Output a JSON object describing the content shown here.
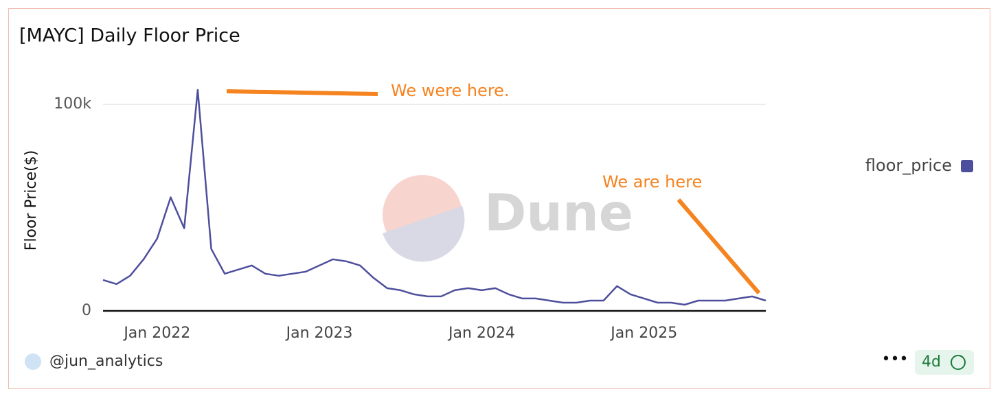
{
  "chart_data": {
    "type": "line",
    "title": "[MAYC] Daily Floor Price",
    "y_label": "Floor Price($)",
    "x": [
      "2021-09",
      "2021-10",
      "2021-11",
      "2021-12",
      "2022-01",
      "2022-02",
      "2022-03",
      "2022-04",
      "2022-05",
      "2022-06",
      "2022-07",
      "2022-08",
      "2022-09",
      "2022-10",
      "2022-11",
      "2022-12",
      "2023-01",
      "2023-02",
      "2023-03",
      "2023-04",
      "2023-05",
      "2023-06",
      "2023-07",
      "2023-08",
      "2023-09",
      "2023-10",
      "2023-11",
      "2023-12",
      "2024-01",
      "2024-02",
      "2024-03",
      "2024-04",
      "2024-05",
      "2024-06",
      "2024-07",
      "2024-08",
      "2024-09",
      "2024-10",
      "2024-11",
      "2024-12",
      "2025-01",
      "2025-02",
      "2025-03",
      "2025-04",
      "2025-05",
      "2025-06",
      "2025-07",
      "2025-08",
      "2025-09",
      "2025-10"
    ],
    "series": [
      {
        "name": "floor_price",
        "color": "#4e4f9c",
        "values": [
          15000,
          13000,
          17000,
          25000,
          35000,
          55000,
          40000,
          107000,
          30000,
          18000,
          20000,
          22000,
          18000,
          17000,
          18000,
          19000,
          22000,
          25000,
          24000,
          22000,
          16000,
          11000,
          10000,
          8000,
          7000,
          7000,
          10000,
          11000,
          10000,
          11000,
          8000,
          6000,
          6000,
          5000,
          4000,
          4000,
          5000,
          5000,
          12000,
          8000,
          6000,
          4000,
          4000,
          3000,
          5000,
          5000,
          5000,
          6000,
          7000,
          5000
        ]
      }
    ],
    "xlim": [
      "2021-09",
      "2025-10"
    ],
    "xticks": [
      {
        "value": "2022-01",
        "label": "Jan 2022"
      },
      {
        "value": "2023-01",
        "label": "Jan 2023"
      },
      {
        "value": "2024-01",
        "label": "Jan 2024"
      },
      {
        "value": "2025-01",
        "label": "Jan 2025"
      }
    ],
    "ylim": [
      0,
      108000
    ],
    "yticks": [
      0,
      {
        "value": 100000,
        "label": "100k"
      }
    ],
    "grid": true,
    "legend": "right",
    "annotations": [
      "We were here.",
      "We are here"
    ],
    "watermark": "Dune",
    "author": "@jun_analytics",
    "age": "4d"
  }
}
